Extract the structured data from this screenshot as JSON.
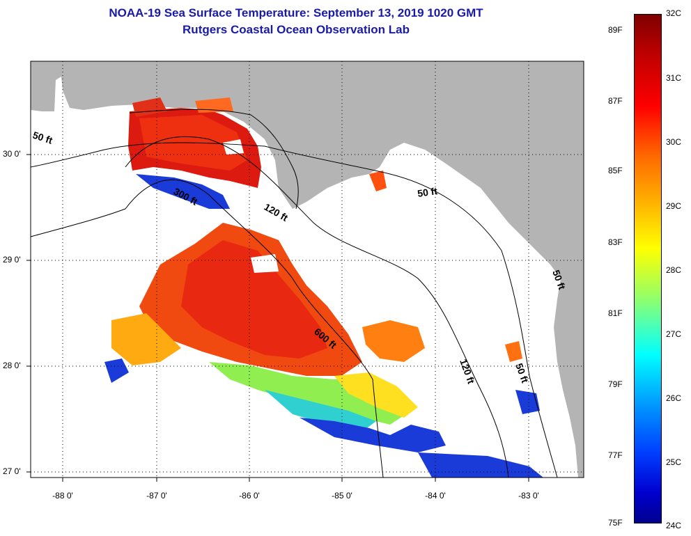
{
  "title": "NOAA-19 Sea Surface Temperature:  September 13, 2019 1020 GMT",
  "subtitle": "Rutgers Coastal Ocean Observation Lab",
  "latitude_labels": [
    "30 0'",
    "29 0'",
    "28 0'",
    "27 0'"
  ],
  "longitude_labels": [
    "-88 0'",
    "-87 0'",
    "-86 0'",
    "-85 0'",
    "-84 0'",
    "-83 0'"
  ],
  "contour_labels": [
    "50 ft",
    "300 ft",
    "120 ft",
    "50 ft",
    "600 ft",
    "120 ft",
    "50 ft",
    "50 ft"
  ],
  "colorbar": {
    "fahrenheit_labels": [
      "89F",
      "87F",
      "85F",
      "83F",
      "81F",
      "79F",
      "77F",
      "75F"
    ],
    "celsius_labels": [
      "32C",
      "31C",
      "30C",
      "29C",
      "28C",
      "27C",
      "26C",
      "25C",
      "24C"
    ]
  },
  "colors": {
    "land": "#b4b4b4",
    "water": "#ffffff",
    "title": "#1a1aa8"
  }
}
